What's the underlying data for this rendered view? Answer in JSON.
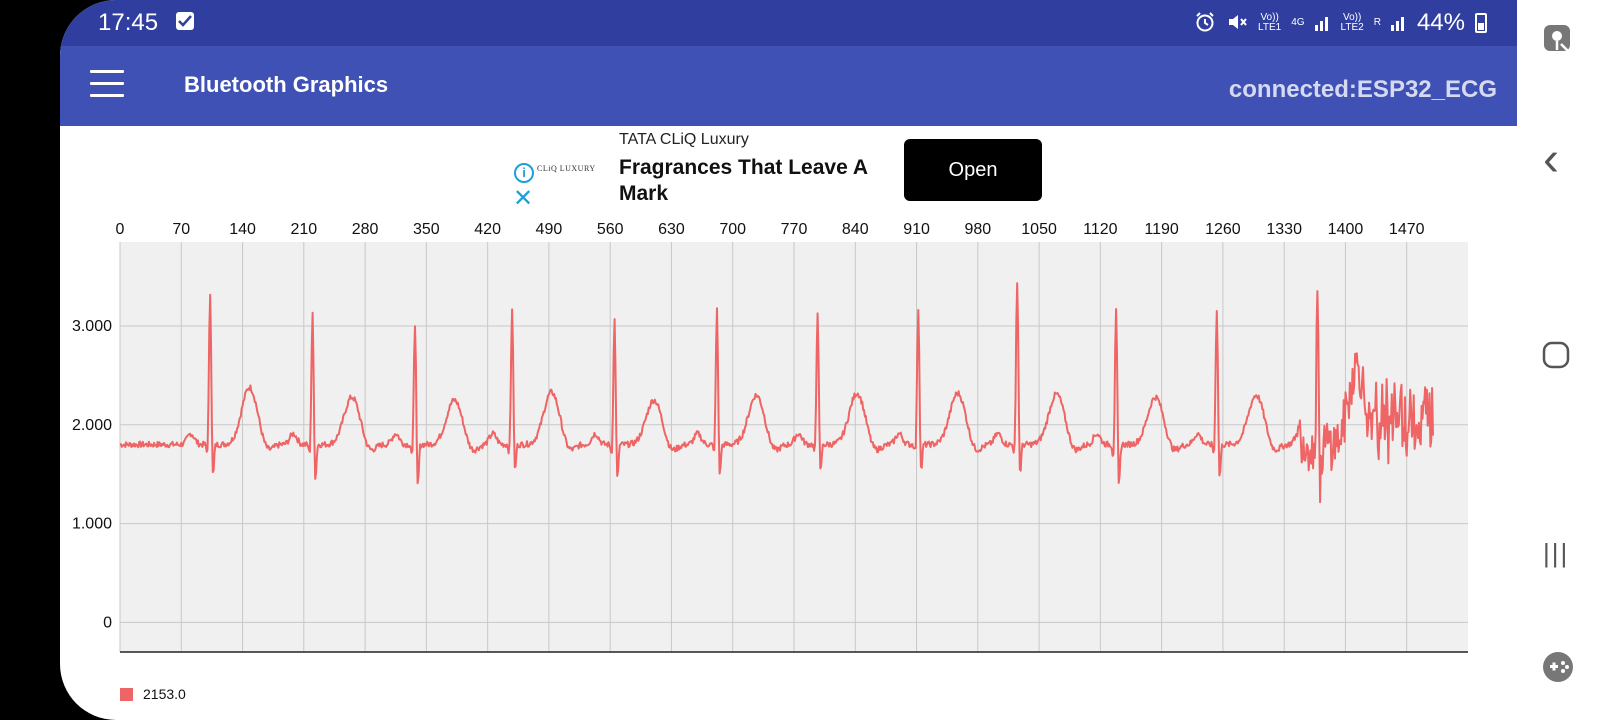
{
  "status_bar": {
    "time": "17:45",
    "network_sim1_top": "Vo))",
    "network_sim1_bottom": "LTE1",
    "network_type": "4G",
    "network_sim2_top": "Vo))",
    "network_sim2_bottom": "LTE2",
    "roaming": "R",
    "battery": "44%"
  },
  "app_bar": {
    "title": "Bluetooth Graphics",
    "connection": "connected:ESP32_ECG"
  },
  "ad": {
    "brand": "TATA CLiQ Luxury",
    "logo_text": "CLiQ LUXURY",
    "headline": "Fragrances That Leave A Mark",
    "cta": "Open",
    "info": "i",
    "close": "✕"
  },
  "colors": {
    "status_bar": "#303f9f",
    "app_bar": "#3f51b5",
    "series": "#ef6464",
    "plot_bg": "#f0f0f0"
  },
  "chart_data": {
    "type": "line",
    "x_ticks": [
      0,
      70,
      140,
      210,
      280,
      350,
      420,
      490,
      560,
      630,
      700,
      770,
      840,
      910,
      980,
      1050,
      1120,
      1190,
      1260,
      1330,
      1400,
      1470
    ],
    "y_tick_labels": [
      "0",
      "1.000",
      "2.000",
      "3.000"
    ],
    "y_tick_values": [
      0,
      1000,
      2000,
      3000
    ],
    "xlim": [
      0,
      1540
    ],
    "ylim": [
      -300,
      3850
    ],
    "grid": true,
    "legend_position": "bottom-left",
    "series": [
      {
        "name": "2153.0",
        "baseline": 1800,
        "beats": [
          {
            "x": 103,
            "peak": 3350,
            "trough": 1400,
            "t_wave": 2380
          },
          {
            "x": 220,
            "peak": 3130,
            "trough": 1380,
            "t_wave": 2280
          },
          {
            "x": 337,
            "peak": 3050,
            "trough": 1300,
            "t_wave": 2250
          },
          {
            "x": 448,
            "peak": 3200,
            "trough": 1460,
            "t_wave": 2330
          },
          {
            "x": 565,
            "peak": 3080,
            "trough": 1380,
            "t_wave": 2250
          },
          {
            "x": 682,
            "peak": 3180,
            "trough": 1430,
            "t_wave": 2300
          },
          {
            "x": 797,
            "peak": 3170,
            "trough": 1440,
            "t_wave": 2320
          },
          {
            "x": 912,
            "peak": 3190,
            "trough": 1470,
            "t_wave": 2320
          },
          {
            "x": 1025,
            "peak": 3480,
            "trough": 1430,
            "t_wave": 2310
          },
          {
            "x": 1138,
            "peak": 3170,
            "trough": 1300,
            "t_wave": 2280
          },
          {
            "x": 1253,
            "peak": 3180,
            "trough": 1400,
            "t_wave": 2300
          },
          {
            "x": 1368,
            "peak": 3430,
            "trough": 1250,
            "t_wave": 2600
          }
        ]
      }
    ]
  },
  "nav": {
    "back": "‹",
    "home": "○",
    "recents": "|||"
  }
}
